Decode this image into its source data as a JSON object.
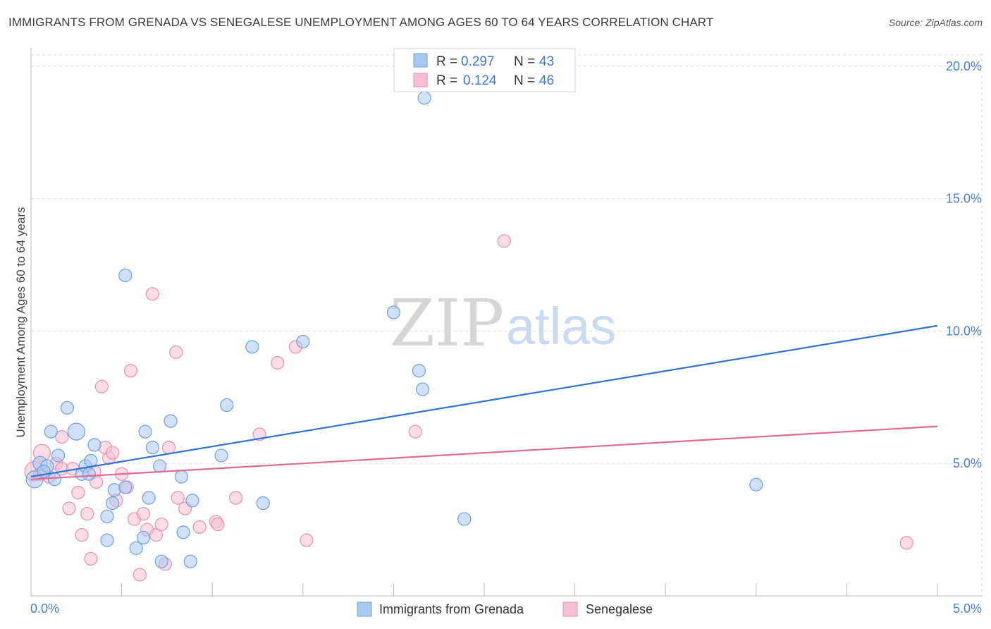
{
  "title": "IMMIGRANTS FROM GRENADA VS SENEGALESE UNEMPLOYMENT AMONG AGES 60 TO 64 YEARS CORRELATION CHART",
  "source": "Source: ZipAtlas.com",
  "watermark": {
    "part1": "ZIP",
    "part2": "atlas"
  },
  "legend": {
    "r_label": "R =",
    "n_label": "N =",
    "grenada": {
      "r": "0.297",
      "n": "43"
    },
    "senegalese": {
      "r": "0.124",
      "n": "46"
    }
  },
  "colors": {
    "grenada_fill": "#a9c8f0",
    "grenada_stroke": "#6f9fe0",
    "grenada_line": "#2f74d0",
    "senegalese_fill": "#f7bfd3",
    "senegalese_stroke": "#ea8fb0",
    "senegalese_line": "#e06a94",
    "axis_text": "#4a7fd0"
  },
  "chart_data": {
    "type": "scatter",
    "title": "IMMIGRANTS FROM GRENADA VS SENEGALESE UNEMPLOYMENT AMONG AGES 60 TO 64 YEARS CORRELATION CHART",
    "xlabel": "",
    "ylabel": "Unemployment Among Ages 60 to 64 years",
    "xlim": [
      0.0,
      5.0
    ],
    "ylim": [
      0.0,
      20.5
    ],
    "x_tick_labels": [
      "0.0%",
      "5.0%"
    ],
    "y_ticks": [
      5.0,
      10.0,
      15.0,
      20.0
    ],
    "y_tick_labels": [
      "5.0%",
      "10.0%",
      "15.0%",
      "20.0%"
    ],
    "legend_position": "top-center",
    "series": [
      {
        "name": "Immigrants from Grenada",
        "r": 0.297,
        "n": 43,
        "trend": [
          [
            0.0,
            4.5
          ],
          [
            5.0,
            10.2
          ]
        ],
        "points": [
          [
            0.02,
            4.4,
            12
          ],
          [
            0.05,
            5.0,
            10
          ],
          [
            0.09,
            4.9,
            9
          ],
          [
            0.15,
            5.3,
            9
          ],
          [
            0.11,
            6.2,
            9
          ],
          [
            0.2,
            7.1,
            9
          ],
          [
            0.25,
            6.2,
            12
          ],
          [
            0.28,
            4.6,
            9
          ],
          [
            0.3,
            4.9,
            9
          ],
          [
            0.32,
            4.6,
            9
          ],
          [
            0.33,
            5.1,
            9
          ],
          [
            0.35,
            5.7,
            9
          ],
          [
            0.42,
            3.0,
            9
          ],
          [
            0.42,
            2.1,
            9
          ],
          [
            0.46,
            4.0,
            9
          ],
          [
            0.45,
            3.5,
            9
          ],
          [
            0.52,
            4.1,
            9
          ],
          [
            0.52,
            12.1,
            9
          ],
          [
            0.58,
            1.8,
            9
          ],
          [
            0.62,
            2.2,
            9
          ],
          [
            0.63,
            6.2,
            9
          ],
          [
            0.65,
            3.7,
            9
          ],
          [
            0.67,
            5.6,
            9
          ],
          [
            0.71,
            4.9,
            9
          ],
          [
            0.72,
            1.3,
            9
          ],
          [
            0.77,
            6.6,
            9
          ],
          [
            0.83,
            4.5,
            9
          ],
          [
            0.84,
            2.4,
            9
          ],
          [
            0.88,
            1.3,
            9
          ],
          [
            0.89,
            3.6,
            9
          ],
          [
            1.05,
            5.3,
            9
          ],
          [
            1.08,
            7.2,
            9
          ],
          [
            1.22,
            9.4,
            9
          ],
          [
            1.28,
            3.5,
            9
          ],
          [
            1.5,
            9.6,
            9
          ],
          [
            2.0,
            10.7,
            9
          ],
          [
            2.14,
            8.5,
            9
          ],
          [
            2.16,
            7.8,
            9
          ],
          [
            2.17,
            18.8,
            9
          ],
          [
            2.39,
            2.9,
            9
          ],
          [
            4.0,
            4.2,
            9
          ],
          [
            0.07,
            4.7,
            9
          ],
          [
            0.13,
            4.4,
            9
          ]
        ]
      },
      {
        "name": "Senegalese",
        "r": 0.124,
        "n": 46,
        "trend": [
          [
            0.0,
            4.4
          ],
          [
            5.0,
            6.4
          ]
        ],
        "points": [
          [
            0.02,
            4.7,
            14
          ],
          [
            0.06,
            5.4,
            12
          ],
          [
            0.1,
            4.5,
            9
          ],
          [
            0.14,
            5.0,
            9
          ],
          [
            0.17,
            4.8,
            9
          ],
          [
            0.17,
            6.0,
            9
          ],
          [
            0.21,
            3.3,
            9
          ],
          [
            0.26,
            3.9,
            9
          ],
          [
            0.28,
            2.3,
            9
          ],
          [
            0.31,
            3.1,
            9
          ],
          [
            0.33,
            1.4,
            9
          ],
          [
            0.35,
            4.7,
            9
          ],
          [
            0.36,
            4.3,
            9
          ],
          [
            0.39,
            7.9,
            9
          ],
          [
            0.41,
            5.6,
            9
          ],
          [
            0.43,
            5.2,
            9
          ],
          [
            0.45,
            5.4,
            9
          ],
          [
            0.47,
            3.6,
            9
          ],
          [
            0.5,
            4.6,
            9
          ],
          [
            0.53,
            4.1,
            9
          ],
          [
            0.55,
            8.5,
            9
          ],
          [
            0.57,
            2.9,
            9
          ],
          [
            0.6,
            0.8,
            9
          ],
          [
            0.62,
            3.1,
            9
          ],
          [
            0.64,
            2.5,
            9
          ],
          [
            0.67,
            11.4,
            9
          ],
          [
            0.69,
            2.3,
            9
          ],
          [
            0.72,
            2.7,
            9
          ],
          [
            0.74,
            1.2,
            9
          ],
          [
            0.76,
            5.6,
            9
          ],
          [
            0.8,
            9.2,
            9
          ],
          [
            0.81,
            3.7,
            9
          ],
          [
            0.85,
            3.3,
            9
          ],
          [
            0.93,
            2.6,
            9
          ],
          [
            1.02,
            2.8,
            9
          ],
          [
            1.03,
            2.7,
            9
          ],
          [
            1.13,
            3.7,
            9
          ],
          [
            1.26,
            6.1,
            9
          ],
          [
            1.36,
            8.8,
            9
          ],
          [
            1.46,
            9.4,
            9
          ],
          [
            1.52,
            2.1,
            9
          ],
          [
            2.12,
            6.2,
            9
          ],
          [
            2.61,
            13.4,
            9
          ],
          [
            4.83,
            2.0,
            9
          ],
          [
            0.05,
            4.6,
            9
          ],
          [
            0.23,
            4.8,
            9
          ]
        ]
      }
    ]
  },
  "bottom_legend": [
    "Immigrants from Grenada",
    "Senegalese"
  ]
}
